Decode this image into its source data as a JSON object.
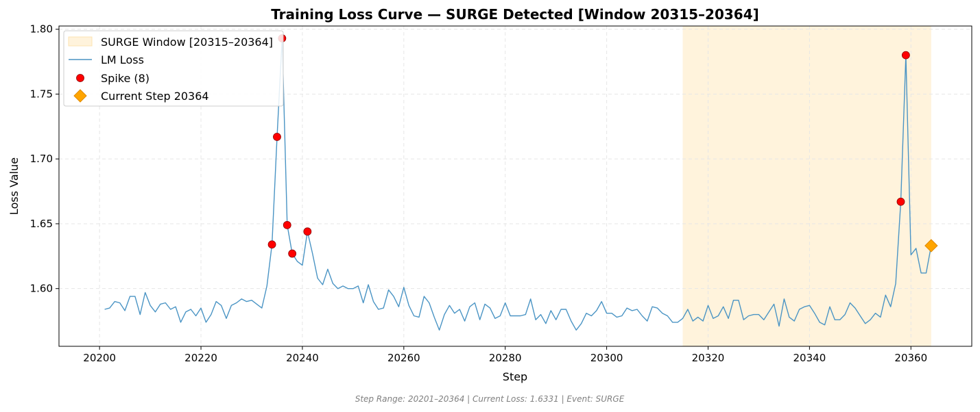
{
  "chart_data": {
    "type": "line",
    "title": "Training Loss Curve — SURGE Detected [Window 20315–20364]",
    "xlabel": "Step",
    "ylabel": "Loss Value",
    "xlim": [
      20192,
      20372
    ],
    "ylim": [
      1.5555,
      1.8025
    ],
    "xticks": [
      20200,
      20220,
      20240,
      20260,
      20280,
      20300,
      20320,
      20340,
      20360
    ],
    "yticks": [
      1.6,
      1.65,
      1.7,
      1.75,
      1.8
    ],
    "grid": true,
    "legend_position": "top-left",
    "legend": {
      "surge_window": "SURGE Window [20315–20364]",
      "loss": "LM Loss",
      "spike": "Spike (8)",
      "current": "Current Step 20364"
    },
    "surge_window": {
      "start": 20315,
      "end": 20364
    },
    "series": [
      {
        "name": "LM Loss",
        "x": [
          20201,
          20202,
          20203,
          20204,
          20205,
          20206,
          20207,
          20208,
          20209,
          20210,
          20211,
          20212,
          20213,
          20214,
          20215,
          20216,
          20217,
          20218,
          20219,
          20220,
          20221,
          20222,
          20223,
          20224,
          20225,
          20226,
          20227,
          20228,
          20229,
          20230,
          20231,
          20232,
          20233,
          20234,
          20235,
          20236,
          20237,
          20238,
          20239,
          20240,
          20241,
          20242,
          20243,
          20244,
          20245,
          20246,
          20247,
          20248,
          20249,
          20250,
          20251,
          20252,
          20253,
          20254,
          20255,
          20256,
          20257,
          20258,
          20259,
          20260,
          20261,
          20262,
          20263,
          20264,
          20265,
          20266,
          20267,
          20268,
          20269,
          20270,
          20271,
          20272,
          20273,
          20274,
          20275,
          20276,
          20277,
          20278,
          20279,
          20280,
          20281,
          20282,
          20283,
          20284,
          20285,
          20286,
          20287,
          20288,
          20289,
          20290,
          20291,
          20292,
          20293,
          20294,
          20295,
          20296,
          20297,
          20298,
          20299,
          20300,
          20301,
          20302,
          20303,
          20304,
          20305,
          20306,
          20307,
          20308,
          20309,
          20310,
          20311,
          20312,
          20313,
          20314,
          20315,
          20316,
          20317,
          20318,
          20319,
          20320,
          20321,
          20322,
          20323,
          20324,
          20325,
          20326,
          20327,
          20328,
          20329,
          20330,
          20331,
          20332,
          20333,
          20334,
          20335,
          20336,
          20337,
          20338,
          20339,
          20340,
          20341,
          20342,
          20343,
          20344,
          20345,
          20346,
          20347,
          20348,
          20349,
          20350,
          20351,
          20352,
          20353,
          20354,
          20355,
          20356,
          20357,
          20358,
          20359,
          20360,
          20361,
          20362,
          20363,
          20364
        ],
        "y": [
          1.584,
          1.585,
          1.59,
          1.589,
          1.583,
          1.594,
          1.594,
          1.58,
          1.597,
          1.587,
          1.582,
          1.588,
          1.589,
          1.584,
          1.586,
          1.574,
          1.582,
          1.584,
          1.579,
          1.585,
          1.574,
          1.58,
          1.59,
          1.587,
          1.577,
          1.587,
          1.589,
          1.592,
          1.59,
          1.591,
          1.588,
          1.585,
          1.602,
          1.634,
          1.717,
          1.793,
          1.649,
          1.627,
          1.621,
          1.618,
          1.644,
          1.627,
          1.608,
          1.603,
          1.615,
          1.604,
          1.6,
          1.602,
          1.6,
          1.6,
          1.602,
          1.589,
          1.603,
          1.59,
          1.584,
          1.585,
          1.599,
          1.594,
          1.586,
          1.601,
          1.587,
          1.579,
          1.578,
          1.594,
          1.589,
          1.578,
          1.568,
          1.58,
          1.587,
          1.581,
          1.584,
          1.575,
          1.586,
          1.589,
          1.576,
          1.588,
          1.585,
          1.577,
          1.579,
          1.589,
          1.579,
          1.579,
          1.579,
          1.58,
          1.592,
          1.576,
          1.58,
          1.573,
          1.583,
          1.576,
          1.584,
          1.584,
          1.575,
          1.568,
          1.573,
          1.581,
          1.579,
          1.583,
          1.59,
          1.581,
          1.581,
          1.578,
          1.579,
          1.585,
          1.583,
          1.584,
          1.579,
          1.575,
          1.586,
          1.585,
          1.581,
          1.579,
          1.574,
          1.574,
          1.577,
          1.584,
          1.575,
          1.578,
          1.575,
          1.587,
          1.577,
          1.579,
          1.586,
          1.577,
          1.591,
          1.591,
          1.576,
          1.579,
          1.58,
          1.58,
          1.576,
          1.582,
          1.588,
          1.571,
          1.592,
          1.578,
          1.575,
          1.584,
          1.586,
          1.587,
          1.581,
          1.574,
          1.572,
          1.586,
          1.576,
          1.576,
          1.58,
          1.589,
          1.585,
          1.579,
          1.573,
          1.576,
          1.581,
          1.578,
          1.595,
          1.586,
          1.604,
          1.667,
          1.78,
          1.626,
          1.631,
          1.612,
          1.612,
          1.633
        ]
      }
    ],
    "spikes": [
      {
        "x": 20234,
        "y": 1.634
      },
      {
        "x": 20235,
        "y": 1.717
      },
      {
        "x": 20236,
        "y": 1.793
      },
      {
        "x": 20237,
        "y": 1.649
      },
      {
        "x": 20238,
        "y": 1.627
      },
      {
        "x": 20241,
        "y": 1.644
      },
      {
        "x": 20358,
        "y": 1.667
      },
      {
        "x": 20359,
        "y": 1.78
      }
    ],
    "current_step": {
      "x": 20364,
      "y": 1.6331
    },
    "footer": "Step Range: 20201–20364 | Current Loss: 1.6331 | Event: SURGE",
    "colors": {
      "line": "#4a94c4",
      "spike_fill": "#ff0000",
      "spike_edge": "#8b0000",
      "current_fill": "#ffa500",
      "current_edge": "#e08a00",
      "surge_fill": "#fff3dc",
      "grid": "#e6e6e6"
    }
  }
}
